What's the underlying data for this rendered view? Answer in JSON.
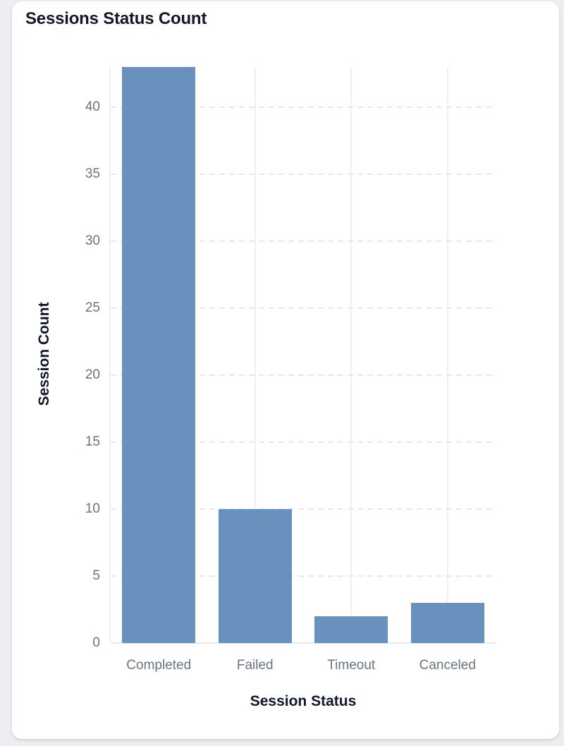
{
  "card": {
    "title": "Sessions Status Count"
  },
  "chart_data": {
    "type": "bar",
    "title": "Sessions Status Count",
    "categories": [
      "Completed",
      "Failed",
      "Timeout",
      "Canceled"
    ],
    "values": [
      43,
      10,
      2,
      3
    ],
    "xlabel": "Session Status",
    "ylabel": "Session Count",
    "ylim": [
      0,
      43
    ],
    "yticks": [
      0,
      5,
      10,
      15,
      20,
      25,
      30,
      35,
      40
    ],
    "legend": "none",
    "grid": {
      "y_style": "dashed",
      "x_style": "solid",
      "on": true
    },
    "colors": {
      "bar": "#6991BE",
      "grid_dash": "#e6e8ee",
      "grid_vertical": "#eef0f4",
      "axis_border": "#eef0f4",
      "baseline": "#e6e8ee",
      "tick_label": "#6b7280",
      "axis_title": "#111827",
      "chart_title": "#111827",
      "card_bg": "#ffffff",
      "page_bg": "#eceef2"
    }
  }
}
